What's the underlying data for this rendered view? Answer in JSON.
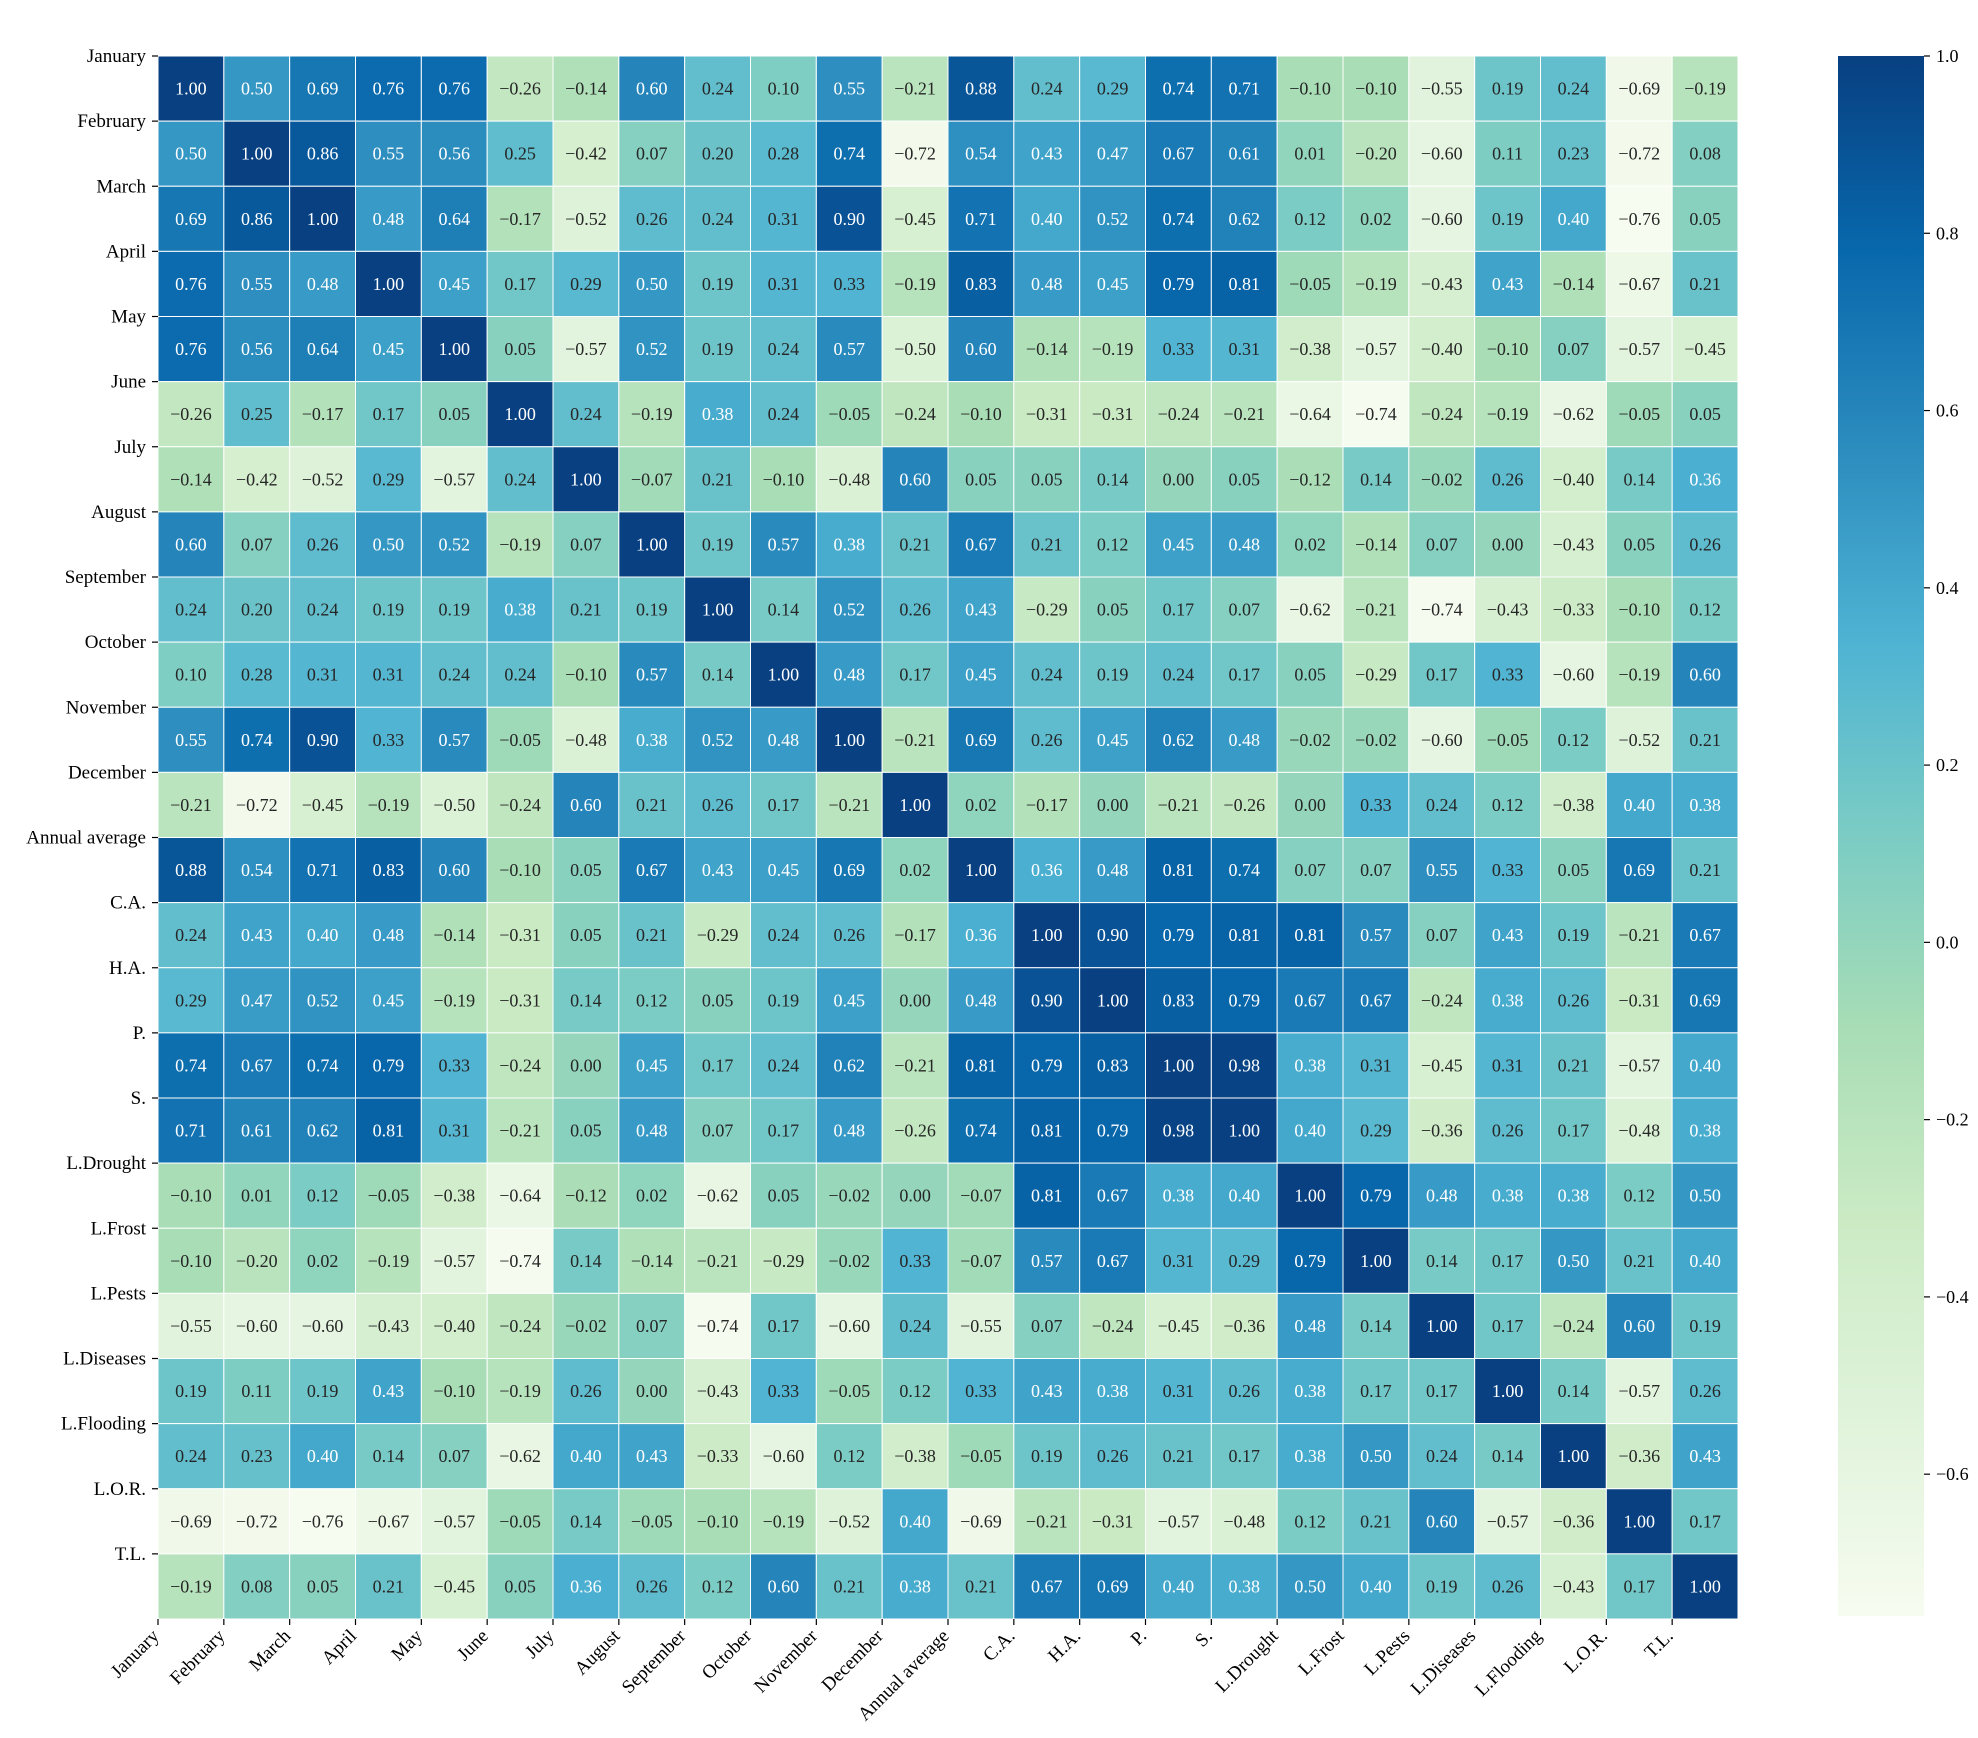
{
  "chart_data": {
    "type": "heatmap",
    "title": "",
    "xlabel": "",
    "ylabel": "",
    "labels": [
      "January",
      "February",
      "March",
      "April",
      "May",
      "June",
      "July",
      "August",
      "September",
      "October",
      "November",
      "December",
      "Annual average",
      "C.A.",
      "H.A.",
      "P.",
      "S.",
      "L.Drought",
      "L.Frost",
      "L.Pests",
      "L.Diseases",
      "L.Flooding",
      "L.O.R.",
      "T.L."
    ],
    "values": [
      [
        1.0,
        0.5,
        0.69,
        0.76,
        0.76,
        -0.26,
        -0.14,
        0.6,
        0.24,
        0.1,
        0.55,
        -0.21,
        0.88,
        0.24,
        0.29,
        0.74,
        0.71,
        -0.1,
        -0.1,
        -0.55,
        0.19,
        0.24,
        -0.69,
        -0.19
      ],
      [
        0.5,
        1.0,
        0.86,
        0.55,
        0.56,
        0.25,
        -0.42,
        0.07,
        0.2,
        0.28,
        0.74,
        -0.72,
        0.54,
        0.43,
        0.47,
        0.67,
        0.61,
        0.01,
        -0.2,
        -0.6,
        0.11,
        0.23,
        -0.72,
        0.08
      ],
      [
        0.69,
        0.86,
        1.0,
        0.48,
        0.64,
        -0.17,
        -0.52,
        0.26,
        0.24,
        0.31,
        0.9,
        -0.45,
        0.71,
        0.4,
        0.52,
        0.74,
        0.62,
        0.12,
        0.02,
        -0.6,
        0.19,
        0.4,
        -0.76,
        0.05
      ],
      [
        0.76,
        0.55,
        0.48,
        1.0,
        0.45,
        0.17,
        0.29,
        0.5,
        0.19,
        0.31,
        0.33,
        -0.19,
        0.83,
        0.48,
        0.45,
        0.79,
        0.81,
        -0.05,
        -0.19,
        -0.43,
        0.43,
        -0.14,
        -0.67,
        0.21
      ],
      [
        0.76,
        0.56,
        0.64,
        0.45,
        1.0,
        0.05,
        -0.57,
        0.52,
        0.19,
        0.24,
        0.57,
        -0.5,
        0.6,
        -0.14,
        -0.19,
        0.33,
        0.31,
        -0.38,
        -0.57,
        -0.4,
        -0.1,
        0.07,
        -0.57,
        -0.45
      ],
      [
        -0.26,
        0.25,
        -0.17,
        0.17,
        0.05,
        1.0,
        0.24,
        -0.19,
        0.38,
        0.24,
        -0.05,
        -0.24,
        -0.1,
        -0.31,
        -0.31,
        -0.24,
        -0.21,
        -0.64,
        -0.74,
        -0.24,
        -0.19,
        -0.62,
        -0.05,
        0.05
      ],
      [
        -0.14,
        -0.42,
        -0.52,
        0.29,
        -0.57,
        0.24,
        1.0,
        -0.07,
        0.21,
        -0.1,
        -0.48,
        0.6,
        0.05,
        0.05,
        0.14,
        0.0,
        0.05,
        -0.12,
        0.14,
        -0.02,
        0.26,
        -0.4,
        0.14,
        0.36
      ],
      [
        0.6,
        0.07,
        0.26,
        0.5,
        0.52,
        -0.19,
        0.07,
        1.0,
        0.19,
        0.57,
        0.38,
        0.21,
        0.67,
        0.21,
        0.12,
        0.45,
        0.48,
        0.02,
        -0.14,
        0.07,
        0.0,
        -0.43,
        0.05,
        0.26
      ],
      [
        0.24,
        0.2,
        0.24,
        0.19,
        0.19,
        0.38,
        0.21,
        0.19,
        1.0,
        0.14,
        0.52,
        0.26,
        0.43,
        -0.29,
        0.05,
        0.17,
        0.07,
        -0.62,
        -0.21,
        -0.74,
        -0.43,
        -0.33,
        -0.1,
        0.12
      ],
      [
        0.1,
        0.28,
        0.31,
        0.31,
        0.24,
        0.24,
        -0.1,
        0.57,
        0.14,
        1.0,
        0.48,
        0.17,
        0.45,
        0.24,
        0.19,
        0.24,
        0.17,
        0.05,
        -0.29,
        0.17,
        0.33,
        -0.6,
        -0.19,
        0.6
      ],
      [
        0.55,
        0.74,
        0.9,
        0.33,
        0.57,
        -0.05,
        -0.48,
        0.38,
        0.52,
        0.48,
        1.0,
        -0.21,
        0.69,
        0.26,
        0.45,
        0.62,
        0.48,
        -0.02,
        -0.02,
        -0.6,
        -0.05,
        0.12,
        -0.52,
        0.21
      ],
      [
        -0.21,
        -0.72,
        -0.45,
        -0.19,
        -0.5,
        -0.24,
        0.6,
        0.21,
        0.26,
        0.17,
        -0.21,
        1.0,
        0.02,
        -0.17,
        0.0,
        -0.21,
        -0.26,
        0.0,
        0.33,
        0.24,
        0.12,
        -0.38,
        0.4,
        0.38
      ],
      [
        0.88,
        0.54,
        0.71,
        0.83,
        0.6,
        -0.1,
        0.05,
        0.67,
        0.43,
        0.45,
        0.69,
        0.02,
        1.0,
        0.36,
        0.48,
        0.81,
        0.74,
        0.07,
        0.07,
        0.55,
        0.33,
        0.05,
        0.69,
        0.21
      ],
      [
        0.24,
        0.43,
        0.4,
        0.48,
        -0.14,
        -0.31,
        0.05,
        0.21,
        -0.29,
        0.24,
        0.26,
        -0.17,
        0.36,
        1.0,
        0.9,
        0.79,
        0.81,
        0.81,
        0.57,
        0.07,
        0.43,
        0.19,
        -0.21,
        0.67
      ],
      [
        0.29,
        0.47,
        0.52,
        0.45,
        -0.19,
        -0.31,
        0.14,
        0.12,
        0.05,
        0.19,
        0.45,
        0.0,
        0.48,
        0.9,
        1.0,
        0.83,
        0.79,
        0.67,
        0.67,
        -0.24,
        0.38,
        0.26,
        -0.31,
        0.69
      ],
      [
        0.74,
        0.67,
        0.74,
        0.79,
        0.33,
        -0.24,
        0.0,
        0.45,
        0.17,
        0.24,
        0.62,
        -0.21,
        0.81,
        0.79,
        0.83,
        1.0,
        0.98,
        0.38,
        0.31,
        -0.45,
        0.31,
        0.21,
        -0.57,
        0.4
      ],
      [
        0.71,
        0.61,
        0.62,
        0.81,
        0.31,
        -0.21,
        0.05,
        0.48,
        0.07,
        0.17,
        0.48,
        -0.26,
        0.74,
        0.81,
        0.79,
        0.98,
        1.0,
        0.4,
        0.29,
        -0.36,
        0.26,
        0.17,
        -0.48,
        0.38
      ],
      [
        -0.1,
        0.01,
        0.12,
        -0.05,
        -0.38,
        -0.64,
        -0.12,
        0.02,
        -0.62,
        0.05,
        -0.02,
        0.0,
        -0.07,
        0.81,
        0.67,
        0.38,
        0.4,
        1.0,
        0.79,
        0.48,
        0.38,
        0.38,
        0.12,
        0.5
      ],
      [
        -0.1,
        -0.2,
        0.02,
        -0.19,
        -0.57,
        -0.74,
        0.14,
        -0.14,
        -0.21,
        -0.29,
        -0.02,
        0.33,
        -0.07,
        0.57,
        0.67,
        0.31,
        0.29,
        0.79,
        1.0,
        0.14,
        0.17,
        0.5,
        0.21,
        0.4
      ],
      [
        -0.55,
        -0.6,
        -0.6,
        -0.43,
        -0.4,
        -0.24,
        -0.02,
        0.07,
        -0.74,
        0.17,
        -0.6,
        0.24,
        -0.55,
        0.07,
        -0.24,
        -0.45,
        -0.36,
        0.48,
        0.14,
        1.0,
        0.17,
        -0.24,
        0.6,
        0.19
      ],
      [
        0.19,
        0.11,
        0.19,
        0.43,
        -0.1,
        -0.19,
        0.26,
        0.0,
        -0.43,
        0.33,
        -0.05,
        0.12,
        0.33,
        0.43,
        0.38,
        0.31,
        0.26,
        0.38,
        0.17,
        0.17,
        1.0,
        0.14,
        -0.57,
        0.26
      ],
      [
        0.24,
        0.23,
        0.4,
        0.14,
        0.07,
        -0.62,
        0.4,
        0.43,
        -0.33,
        -0.6,
        0.12,
        -0.38,
        -0.05,
        0.19,
        0.26,
        0.21,
        0.17,
        0.38,
        0.5,
        0.24,
        0.14,
        1.0,
        -0.36,
        0.43
      ],
      [
        -0.69,
        -0.72,
        -0.76,
        -0.67,
        -0.57,
        -0.05,
        0.14,
        -0.05,
        -0.1,
        -0.19,
        -0.52,
        0.4,
        -0.69,
        -0.21,
        -0.31,
        -0.57,
        -0.48,
        0.12,
        0.21,
        0.6,
        -0.57,
        -0.36,
        1.0,
        0.17
      ],
      [
        -0.19,
        0.08,
        0.05,
        0.21,
        -0.45,
        0.05,
        0.36,
        0.26,
        0.12,
        0.6,
        0.21,
        0.38,
        0.21,
        0.67,
        0.69,
        0.4,
        0.38,
        0.5,
        0.4,
        0.19,
        0.26,
        -0.43,
        0.17,
        1.0
      ]
    ],
    "colorbar": {
      "range": [
        -0.76,
        1.0
      ],
      "ticks": [
        1.0,
        0.8,
        0.6,
        0.4,
        0.2,
        0.0,
        -0.2,
        -0.4,
        -0.6
      ],
      "tick_labels": [
        "1.0",
        "0.8",
        "0.6",
        "0.4",
        "0.2",
        "0.0",
        "−0.2",
        "−0.4",
        "−0.6"
      ],
      "colormap": "GnBu",
      "colors": [
        "#f7fcf0",
        "#e0f3db",
        "#ccebc5",
        "#a8ddb5",
        "#7bccc4",
        "#4eb3d3",
        "#2b8cbe",
        "#0868ac",
        "#084081"
      ]
    },
    "grid": true,
    "legend": "colorbar-right"
  }
}
